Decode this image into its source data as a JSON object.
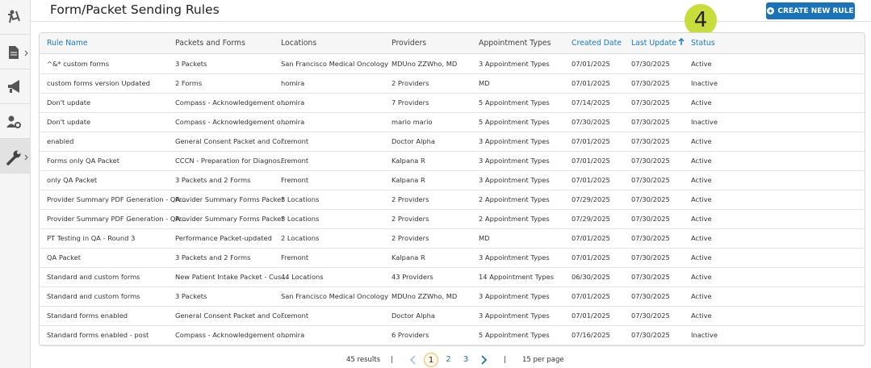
{
  "header": {
    "title": "Form/Packet Sending Rules",
    "button": "CREATE NEW RULE"
  },
  "annotation": "4",
  "table": {
    "columns": [
      {
        "label": "Rule Name",
        "color": "#1a7ac4"
      },
      {
        "label": "Packets and Forms",
        "color": "#444444"
      },
      {
        "label": "Locations",
        "color": "#444444"
      },
      {
        "label": "Providers",
        "color": "#444444"
      },
      {
        "label": "Appointment Types",
        "color": "#444444"
      },
      {
        "label": "Created Date",
        "color": "#1a7ac4"
      },
      {
        "label": "Last Update",
        "color": "#1a7ac4"
      },
      {
        "label": "Status",
        "color": "#1a7ac4"
      }
    ],
    "rows": [
      [
        "^&* custom forms",
        "3 Packets",
        "San Francisco Medical Oncology",
        "MDUno ZZWho, MD",
        "3 Appointment Types",
        "07/01/2025",
        "07/30/2025",
        "Active"
      ],
      [
        "custom forms version Updated",
        "2 Forms",
        "homira",
        "2 Providers",
        "MD",
        "07/01/2025",
        "07/30/2025",
        "Inactive"
      ],
      [
        "Don't update",
        "Compass - Acknowledgement o...",
        "homira",
        "7 Providers",
        "5 Appointment Types",
        "07/14/2025",
        "07/30/2025",
        "Active"
      ],
      [
        "Don't update",
        "Compass - Acknowledgement o...",
        "homira",
        "mario mario",
        "5 Appointment Types",
        "07/30/2025",
        "07/30/2025",
        "Inactive"
      ],
      [
        "enabled",
        "General Consent Packet and Co...",
        "Fremont",
        "Doctor Alpha",
        "3 Appointment Types",
        "07/01/2025",
        "07/30/2025",
        "Active"
      ],
      [
        "Forms only QA Packet",
        "CCCN - Preparation for Diagnos...",
        "Fremont",
        "Kalpana R",
        "3 Appointment Types",
        "07/01/2025",
        "07/30/2025",
        "Active"
      ],
      [
        "only QA Packet",
        "3 Packets and 2 Forms",
        "Fremont",
        "Kalpana R",
        "3 Appointment Types",
        "07/01/2025",
        "07/30/2025",
        "Active"
      ],
      [
        "Provider Summary PDF Generation - QA...",
        "Provider Summary Forms Packet",
        "3 Locations",
        "2 Providers",
        "2 Appointment Types",
        "07/29/2025",
        "07/30/2025",
        "Active"
      ],
      [
        "Provider Summary PDF Generation - QA...",
        "Provider Summary Forms Packet",
        "3 Locations",
        "2 Providers",
        "2 Appointment Types",
        "07/29/2025",
        "07/30/2025",
        "Active"
      ],
      [
        "PT Testing in QA - Round 3",
        "Performance Packet-updated",
        "2 Locations",
        "2 Providers",
        "MD",
        "07/01/2025",
        "07/30/2025",
        "Active"
      ],
      [
        "QA Packet",
        "3 Packets and 2 Forms",
        "Fremont",
        "Kalpana R",
        "3 Appointment Types",
        "07/01/2025",
        "07/30/2025",
        "Active"
      ],
      [
        "Standard and custom forms",
        "New Patient Intake Packet - Cus...",
        "44 Locations",
        "43 Providers",
        "14 Appointment Types",
        "06/30/2025",
        "07/30/2025",
        "Active"
      ],
      [
        "Standard and custom forms",
        "3 Packets",
        "San Francisco Medical Oncology",
        "MDUno ZZWho, MD",
        "3 Appointment Types",
        "07/01/2025",
        "07/30/2025",
        "Active"
      ],
      [
        "Standard forms enabled",
        "General Consent Packet and Co...",
        "Fremont",
        "Doctor Alpha",
        "3 Appointment Types",
        "07/01/2025",
        "07/30/2025",
        "Active"
      ],
      [
        "Standard forms enabled - post",
        "Compass - Acknowledgement o...",
        "homira",
        "6 Providers",
        "5 Appointment Types",
        "07/16/2025",
        "07/30/2025",
        "Inactive"
      ]
    ]
  },
  "pagination": {
    "results": "45 results",
    "separator": "|",
    "pages": [
      "1",
      "2",
      "3"
    ],
    "per_page": "15 per page"
  }
}
